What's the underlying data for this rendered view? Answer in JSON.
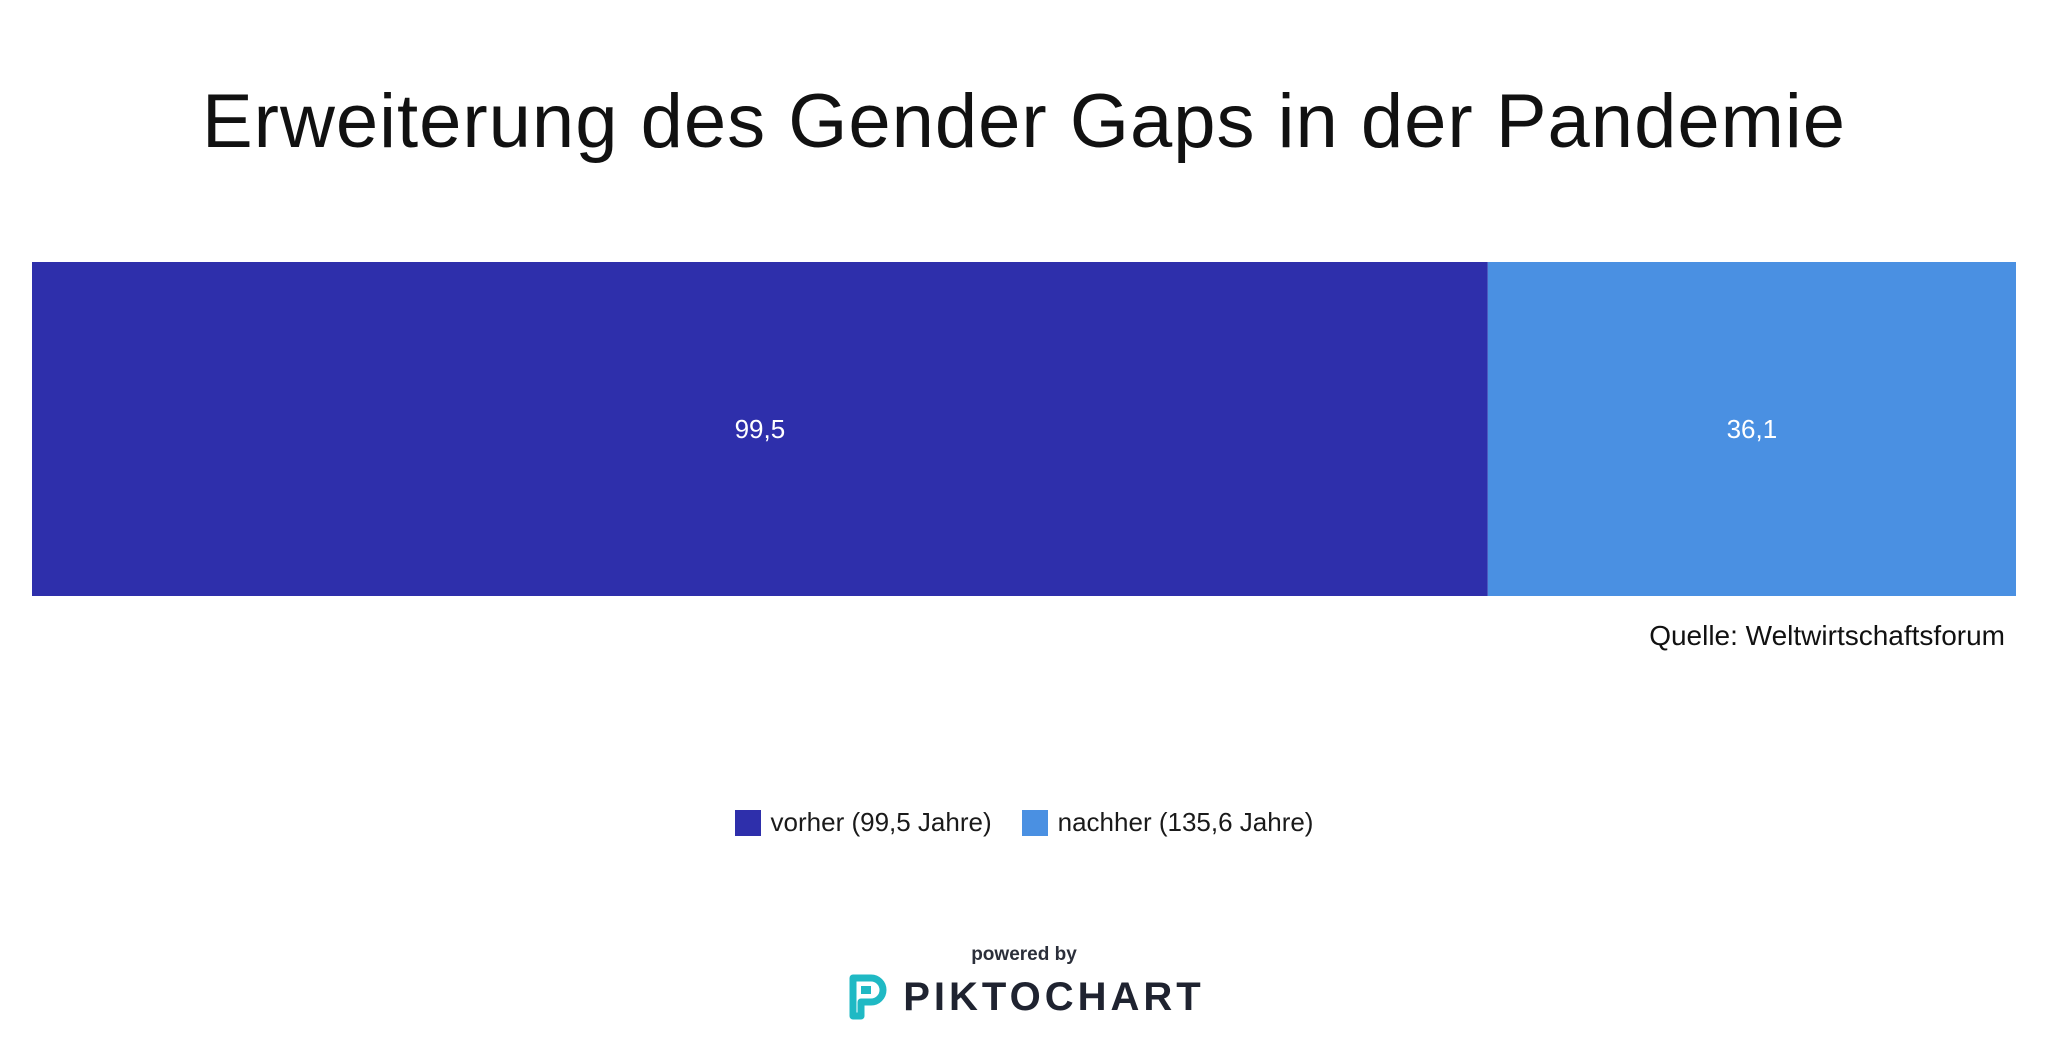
{
  "title": "Erweiterung des Gender Gaps in der Pandemie",
  "source": "Quelle: Weltwirtschaftsforum",
  "colors": {
    "vorher": "#2e2fab",
    "nachher": "#4a90e2"
  },
  "chart_data": {
    "type": "bar",
    "orientation": "horizontal-stacked",
    "title": "Erweiterung des Gender Gaps in der Pandemie",
    "total": 135.6,
    "series": [
      {
        "name": "vorher (99,5 Jahre)",
        "value": 99.5,
        "label": "99,5",
        "color": "#2e2fab"
      },
      {
        "name": "nachher (135,6 Jahre)",
        "value": 36.1,
        "label": "36,1",
        "color": "#4a90e2"
      }
    ],
    "legend_position": "bottom-center"
  },
  "footer": {
    "powered_by": "powered by",
    "brand": "PIKTOCHART",
    "brand_icon": "piktochart-logo-icon"
  }
}
